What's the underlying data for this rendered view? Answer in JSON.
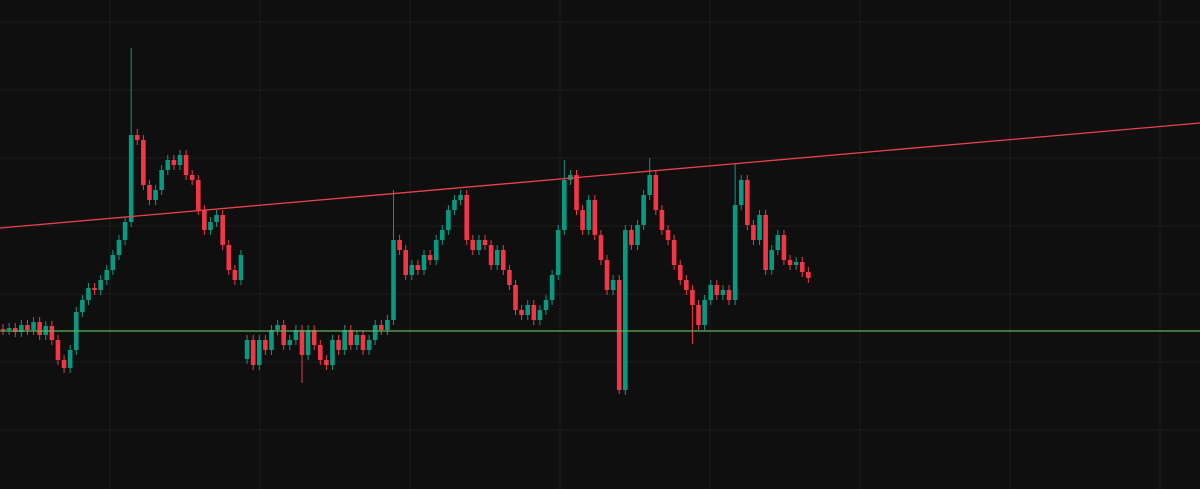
{
  "chart_data": {
    "type": "candlestick",
    "up_color": "#089981",
    "down_color": "#f23645",
    "xlim": [
      -0.5,
      196.2
    ],
    "ylim": [
      0,
      489
    ],
    "open": [
      160,
      159,
      161,
      157,
      164,
      159,
      167,
      154,
      163,
      149,
      129,
      121,
      139,
      177,
      189,
      201,
      199,
      209,
      219,
      234,
      249,
      267,
      354,
      349,
      304,
      289,
      299,
      319,
      329,
      324,
      334,
      314,
      309,
      279,
      259,
      267,
      274,
      244,
      219,
      209,
      130,
      149,
      124,
      149,
      139,
      159,
      164,
      144,
      149,
      159,
      134,
      159,
      144,
      129,
      124,
      149,
      139,
      159,
      144,
      154,
      139,
      149,
      164,
      159,
      169,
      249,
      239,
      214,
      224,
      219,
      234,
      229,
      249,
      259,
      279,
      289,
      294,
      249,
      239,
      249,
      244,
      224,
      239,
      219,
      204,
      179,
      174,
      184,
      169,
      179,
      189,
      214,
      259,
      309,
      314,
      279,
      259,
      289,
      254,
      229,
      199,
      209,
      99,
      259,
      244,
      264,
      294,
      314,
      279,
      259,
      249,
      224,
      209,
      199,
      184,
      164,
      189,
      204,
      194,
      199,
      189,
      284,
      309,
      264,
      249,
      274,
      219,
      239,
      254,
      229,
      224,
      227,
      217
    ],
    "high": [
      165,
      166,
      166,
      169,
      169,
      172,
      172,
      168,
      168,
      154,
      134,
      144,
      182,
      194,
      206,
      206,
      214,
      224,
      239,
      254,
      272,
      441,
      360,
      354,
      309,
      304,
      324,
      334,
      334,
      339,
      339,
      319,
      314,
      284,
      272,
      279,
      279,
      249,
      224,
      239,
      154,
      154,
      154,
      154,
      164,
      169,
      169,
      154,
      164,
      164,
      164,
      164,
      149,
      134,
      154,
      154,
      164,
      164,
      159,
      159,
      154,
      169,
      169,
      174,
      299,
      254,
      244,
      229,
      229,
      239,
      239,
      254,
      264,
      284,
      294,
      299,
      299,
      254,
      254,
      254,
      249,
      244,
      244,
      224,
      209,
      184,
      189,
      189,
      184,
      194,
      219,
      264,
      329,
      319,
      319,
      284,
      294,
      294,
      259,
      234,
      214,
      214,
      264,
      264,
      269,
      299,
      331,
      319,
      284,
      264,
      254,
      229,
      214,
      204,
      189,
      194,
      209,
      209,
      204,
      204,
      325,
      314,
      314,
      269,
      279,
      279,
      244,
      259,
      259,
      234,
      232,
      232,
      222
    ],
    "low": [
      154,
      154,
      152,
      152,
      154,
      154,
      149,
      149,
      144,
      124,
      116,
      116,
      134,
      172,
      184,
      194,
      194,
      204,
      214,
      229,
      244,
      262,
      344,
      299,
      284,
      284,
      294,
      314,
      319,
      319,
      309,
      304,
      274,
      254,
      254,
      262,
      239,
      214,
      204,
      204,
      125,
      119,
      119,
      134,
      134,
      154,
      139,
      139,
      144,
      106,
      129,
      139,
      124,
      119,
      119,
      134,
      134,
      139,
      139,
      134,
      134,
      144,
      154,
      154,
      164,
      234,
      209,
      209,
      214,
      214,
      224,
      224,
      244,
      254,
      274,
      284,
      244,
      234,
      234,
      239,
      219,
      219,
      214,
      199,
      174,
      169,
      169,
      164,
      164,
      174,
      184,
      209,
      254,
      304,
      274,
      254,
      254,
      249,
      224,
      194,
      194,
      95,
      94,
      239,
      239,
      259,
      289,
      274,
      254,
      244,
      219,
      204,
      194,
      145,
      159,
      159,
      184,
      189,
      189,
      184,
      184,
      279,
      259,
      244,
      244,
      214,
      214,
      234,
      224,
      219,
      219,
      212,
      206
    ],
    "close": [
      159,
      161,
      157,
      164,
      159,
      167,
      154,
      163,
      149,
      129,
      121,
      139,
      177,
      189,
      201,
      199,
      209,
      219,
      234,
      249,
      267,
      354,
      349,
      304,
      289,
      299,
      319,
      329,
      324,
      334,
      314,
      309,
      279,
      259,
      267,
      274,
      244,
      219,
      209,
      234,
      149,
      124,
      149,
      139,
      159,
      164,
      144,
      149,
      159,
      134,
      159,
      144,
      129,
      124,
      149,
      139,
      159,
      144,
      154,
      139,
      149,
      164,
      159,
      169,
      249,
      239,
      214,
      224,
      219,
      234,
      229,
      249,
      259,
      279,
      289,
      294,
      249,
      239,
      249,
      244,
      224,
      239,
      219,
      204,
      179,
      174,
      184,
      169,
      179,
      189,
      214,
      259,
      309,
      314,
      279,
      259,
      289,
      254,
      229,
      199,
      209,
      99,
      259,
      244,
      264,
      294,
      314,
      279,
      259,
      249,
      224,
      209,
      199,
      184,
      164,
      189,
      204,
      194,
      199,
      189,
      284,
      309,
      264,
      249,
      274,
      219,
      239,
      254,
      229,
      224,
      227,
      217,
      211
    ],
    "lines": [
      {
        "color": "#e8424f",
        "x": [
          -0.5,
          196.2
        ],
        "y": [
          261,
          366
        ]
      },
      {
        "color": "#5fb45a",
        "x": [
          -0.5,
          196.2
        ],
        "y": [
          158,
          158
        ]
      }
    ]
  }
}
